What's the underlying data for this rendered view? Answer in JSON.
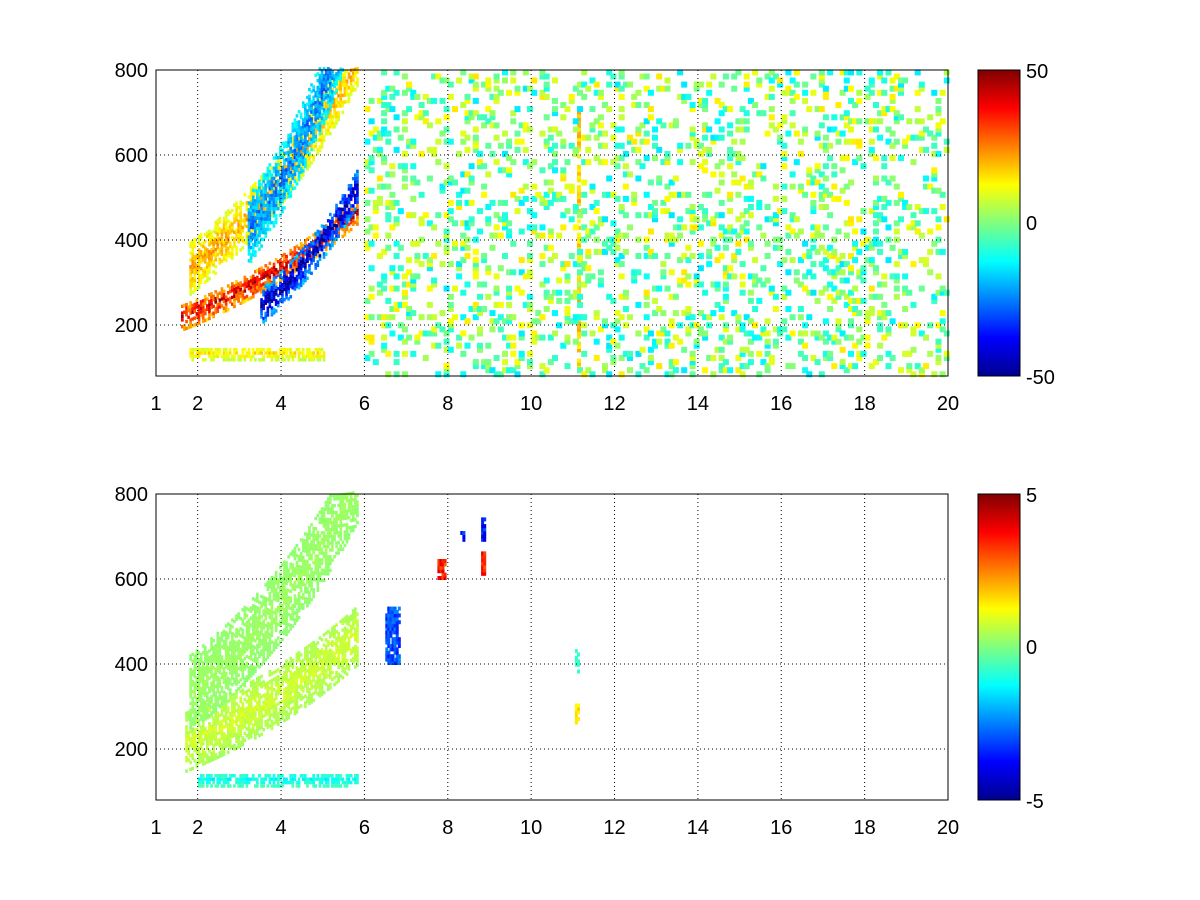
{
  "chart_data": [
    {
      "type": "heatmap",
      "title": "",
      "xlabel": "",
      "ylabel": "",
      "xlim": [
        1,
        20
      ],
      "ylim": [
        80,
        800
      ],
      "grid": true,
      "x_ticks": [
        1,
        2,
        4,
        6,
        8,
        10,
        12,
        14,
        16,
        18,
        20
      ],
      "x_tick_labels": [
        "1",
        "2",
        "4",
        "6",
        "8",
        "10",
        "12",
        "14",
        "16",
        "18",
        "20"
      ],
      "y_ticks": [
        200,
        400,
        600,
        800
      ],
      "y_tick_labels": [
        "200",
        "400",
        "600",
        "800"
      ],
      "colormap": "jet",
      "colorbar": {
        "min": -50,
        "max": 50,
        "tick_labels": [
          "50",
          "0",
          "-50"
        ]
      },
      "features": [
        {
          "kind": "curved_band",
          "x_range": [
            1.6,
            5.8
          ],
          "y_start": 215,
          "growth": 0.55,
          "value": 40,
          "width": 30
        },
        {
          "kind": "curved_band",
          "x_range": [
            3.5,
            5.8
          ],
          "y_start": 240,
          "growth": 0.55,
          "value": -45,
          "width": 40
        },
        {
          "kind": "curved_band",
          "x_range": [
            1.8,
            5.8
          ],
          "y_start": 330,
          "growth": 0.65,
          "value": 20,
          "width": 60
        },
        {
          "kind": "curved_band",
          "x_range": [
            3.2,
            5.8
          ],
          "y_start": 420,
          "growth": 0.6,
          "value": -25,
          "width": 80
        },
        {
          "kind": "horizontal_band",
          "x_range": [
            1.8,
            5.0
          ],
          "y": 130,
          "value": 15,
          "width": 15
        },
        {
          "kind": "vertical_stripe",
          "x": 11.1,
          "y_range": [
            90,
            700
          ],
          "value": 18
        },
        {
          "kind": "scatter_noise",
          "x_range": [
            6,
            20
          ],
          "density": 0.18,
          "value_range": [
            -15,
            15
          ]
        }
      ]
    },
    {
      "type": "heatmap",
      "title": "",
      "xlabel": "",
      "ylabel": "",
      "xlim": [
        1,
        20
      ],
      "ylim": [
        80,
        800
      ],
      "grid": true,
      "x_ticks": [
        1,
        2,
        4,
        6,
        8,
        10,
        12,
        14,
        16,
        18,
        20
      ],
      "x_tick_labels": [
        "1",
        "2",
        "4",
        "6",
        "8",
        "10",
        "12",
        "14",
        "16",
        "18",
        "20"
      ],
      "y_ticks": [
        200,
        400,
        600,
        800
      ],
      "y_tick_labels": [
        "200",
        "400",
        "600",
        "800"
      ],
      "colormap": "jet",
      "colorbar": {
        "min": -5,
        "max": 5,
        "tick_labels": [
          "5",
          "0",
          "-5"
        ]
      },
      "features": [
        {
          "kind": "curved_band",
          "x_range": [
            1.7,
            5.8
          ],
          "y_start": 215,
          "growth": 0.55,
          "value": 0.8,
          "width": 70
        },
        {
          "kind": "curved_band",
          "x_range": [
            1.8,
            5.8
          ],
          "y_start": 330,
          "growth": 0.65,
          "value": 0.3,
          "width": 90
        },
        {
          "kind": "horizontal_band",
          "x_range": [
            2.0,
            5.8
          ],
          "y": 125,
          "value": -1.2,
          "width": 15
        },
        {
          "kind": "patch",
          "x_range": [
            6.5,
            6.8
          ],
          "y_range": [
            400,
            530
          ],
          "value": -3
        },
        {
          "kind": "patch",
          "x_range": [
            7.75,
            7.9
          ],
          "y_range": [
            600,
            640
          ],
          "value": 3.5
        },
        {
          "kind": "patch",
          "x_range": [
            8.8,
            8.9
          ],
          "y_range": [
            610,
            660
          ],
          "value": 3.5
        },
        {
          "kind": "patch",
          "x_range": [
            8.3,
            8.4
          ],
          "y_range": [
            690,
            710
          ],
          "value": -3.5
        },
        {
          "kind": "patch",
          "x_range": [
            8.8,
            8.9
          ],
          "y_range": [
            690,
            740
          ],
          "value": -3.5
        },
        {
          "kind": "patch",
          "x_range": [
            11.05,
            11.15
          ],
          "y_range": [
            380,
            430
          ],
          "value": -0.8
        },
        {
          "kind": "patch",
          "x_range": [
            11.05,
            11.15
          ],
          "y_range": [
            260,
            300
          ],
          "value": 1.5
        }
      ]
    }
  ]
}
